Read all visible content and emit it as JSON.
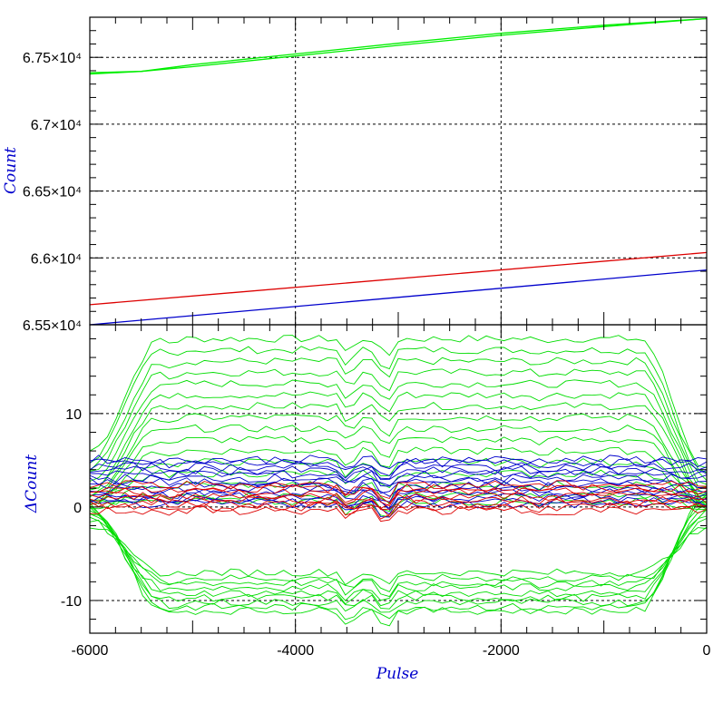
{
  "chart_data": [
    {
      "type": "line",
      "ylabel": "Count",
      "xlim": [
        -6000,
        0
      ],
      "ylim": [
        65500,
        67800
      ],
      "y_tick_labels": [
        "6.55×10⁴",
        "6.6×10⁴",
        "6.65×10⁴",
        "6.7×10⁴",
        "6.75×10⁴"
      ],
      "y_ticks": [
        65500,
        66000,
        66500,
        67000,
        67500
      ],
      "grid": true,
      "series": [
        {
          "color": "#00ee00",
          "x": [
            -6000,
            -5500,
            -5000,
            -4000,
            -3000,
            -2000,
            -1000,
            0
          ],
          "y": [
            67385,
            67395,
            67445,
            67525,
            67605,
            67680,
            67740,
            67790
          ]
        },
        {
          "color": "#00ee00",
          "x": [
            -6000,
            -5500,
            -5000,
            -4000,
            -3000,
            -2000,
            -1000,
            0
          ],
          "y": [
            67375,
            67395,
            67430,
            67510,
            67590,
            67665,
            67730,
            67790
          ]
        },
        {
          "color": "#dd0000",
          "x": [
            -6000,
            0
          ],
          "y": [
            65650,
            66040
          ]
        },
        {
          "color": "#0000cc",
          "x": [
            -6000,
            0
          ],
          "y": [
            65500,
            65910
          ]
        }
      ]
    },
    {
      "type": "line",
      "xlabel": "Pulse",
      "ylabel": "ΔCount",
      "xlim": [
        -6000,
        0
      ],
      "ylim": [
        -13.5,
        19.5
      ],
      "x_ticks": [
        -6000,
        -4000,
        -2000,
        0
      ],
      "x_tick_labels": [
        "-6000",
        "-4000",
        "-2000",
        "0"
      ],
      "y_ticks": [
        -10,
        0,
        10
      ],
      "y_tick_labels": [
        "-10",
        "0",
        "10"
      ],
      "grid": true,
      "bundles": [
        {
          "color": "#00dd00",
          "plateaus": [
            18,
            16.8,
            15.6,
            14.4,
            13.2,
            12,
            10.8,
            9.6,
            8.4,
            7.2,
            6,
            4.8,
            3.6,
            2.4,
            1.2,
            0.6
          ],
          "edge_start": [
            6,
            5,
            4,
            3.5,
            2.5,
            2,
            1.5,
            1.2,
            1,
            0.8,
            0.6,
            0.5,
            0.4,
            0.3,
            0.2,
            0.1
          ],
          "edge_end": [
            4,
            3.5,
            3,
            2.5,
            2,
            1.5,
            1.2,
            1,
            0.8,
            0.6,
            0.5,
            0.4,
            0.3,
            0.2,
            0.1,
            0
          ]
        },
        {
          "color": "#00dd00",
          "plateaus": [
            -7,
            -7.6,
            -8.1,
            -8.6,
            -9.2,
            -9.7,
            -10.2,
            -10.7,
            -11.1
          ],
          "edge_start": [
            -2,
            -1.5,
            -1,
            -0.8,
            -0.6,
            -0.4,
            -0.2,
            0,
            0.2
          ],
          "edge_end": [
            -2.5,
            -2,
            -1.5,
            -1,
            -0.5,
            0,
            0.5,
            1,
            1.5
          ]
        },
        {
          "color": "#0000cc",
          "plateaus": [
            5.1,
            4.7,
            4.3,
            3.9,
            3.5,
            3.1,
            2.7,
            2.3,
            1.9,
            1.5,
            1.1,
            0.7,
            0.3
          ]
        },
        {
          "color": "#dd0000",
          "plateaus": [
            2.4,
            2.0,
            1.6,
            1.2,
            0.8,
            0.4,
            0.0,
            -0.4
          ]
        }
      ]
    }
  ]
}
